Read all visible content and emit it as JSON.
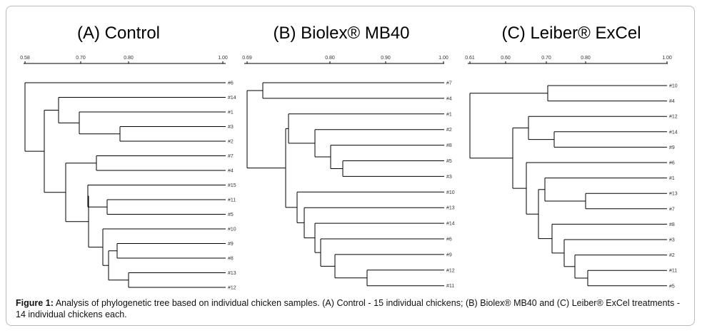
{
  "panels": [
    {
      "title": "(A) Control",
      "scale": [
        "0.58",
        "0.70",
        "0.80",
        "1.00"
      ],
      "leaves": [
        "#6",
        "#14",
        "#1",
        "#3",
        "#2",
        "#7",
        "#4",
        "#15",
        "#11",
        "#5",
        "#10",
        "#9",
        "#8",
        "#13",
        "#12"
      ]
    },
    {
      "title": "(B) Biolex® MB40",
      "scale": [
        "0.69",
        "0.80",
        "0.90",
        "1.00"
      ],
      "leaves": [
        "#7",
        "#4",
        "#1",
        "#2",
        "#8",
        "#5",
        "#3",
        "#10",
        "#13",
        "#14",
        "#6",
        "#9",
        "#12",
        "#11"
      ]
    },
    {
      "title": "(C) Leiber® ExCel",
      "scale": [
        "0.61",
        "0.60",
        "0.70",
        "0.80",
        "1.00"
      ],
      "leaves": [
        "#10",
        "#4",
        "#12",
        "#14",
        "#9",
        "#6",
        "#1",
        "#13",
        "#7",
        "#8",
        "#3",
        "#2",
        "#11",
        "#5"
      ]
    }
  ],
  "caption": {
    "label": "Figure 1:",
    "text": "Analysis of phylogenetic tree based on individual chicken samples. (A) Control - 15 individual chickens; (B) Biolex® MB40 and (C) Leiber® ExCel treatments - 14 individual chickens each."
  }
}
